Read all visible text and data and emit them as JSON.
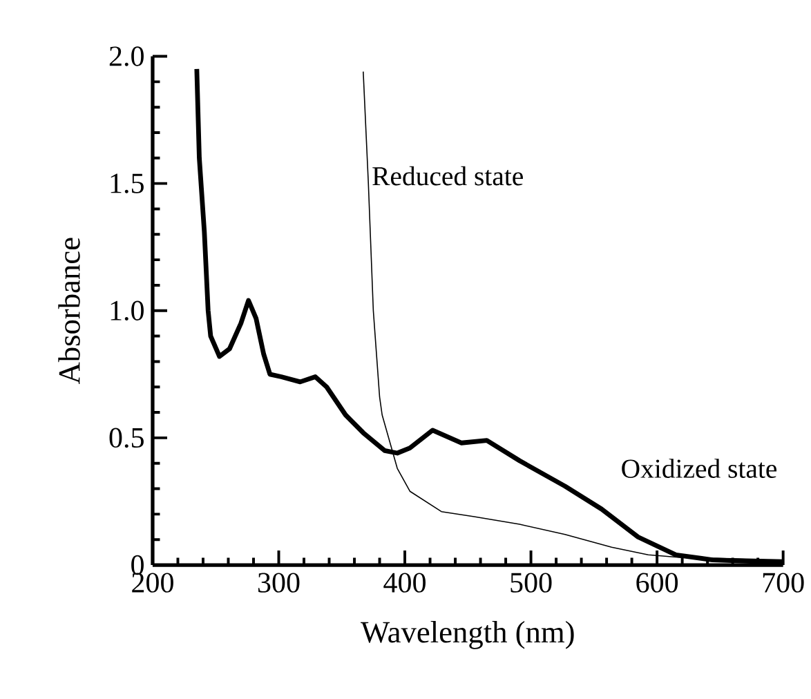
{
  "chart_data": {
    "type": "line",
    "xlabel": "Wavelength (nm)",
    "ylabel": "Absorbance",
    "xlim": [
      200,
      700
    ],
    "ylim": [
      0,
      2.0
    ],
    "xticks": [
      200,
      300,
      400,
      500,
      600,
      700
    ],
    "yticks": [
      {
        "value": 0,
        "label": "0"
      },
      {
        "value": 0.5,
        "label": "0.5"
      },
      {
        "value": 1.0,
        "label": "1.0"
      },
      {
        "value": 1.5,
        "label": "1.5"
      },
      {
        "value": 2.0,
        "label": "2.0"
      }
    ],
    "grid": false,
    "legend": false,
    "marker": "none",
    "line_style": "solid",
    "series": [
      {
        "name": "Oxidized state",
        "color": "#000000",
        "x": [
          235,
          237,
          241,
          244,
          246,
          253,
          261,
          270,
          276,
          282,
          288,
          293,
          302,
          317,
          329,
          338,
          353,
          367,
          384,
          394,
          404,
          422,
          445,
          465,
          491,
          527,
          556,
          585,
          615,
          644,
          700
        ],
        "values": [
          1.95,
          1.6,
          1.31,
          1.0,
          0.9,
          0.82,
          0.85,
          0.95,
          1.04,
          0.97,
          0.83,
          0.75,
          0.74,
          0.72,
          0.74,
          0.7,
          0.59,
          0.52,
          0.45,
          0.44,
          0.46,
          0.53,
          0.48,
          0.49,
          0.41,
          0.31,
          0.22,
          0.11,
          0.04,
          0.02,
          0.01
        ]
      },
      {
        "name": "Reduced state",
        "color": "#000000",
        "x": [
          367,
          371,
          375,
          380,
          382,
          394,
          404,
          429,
          455,
          491,
          527,
          564,
          593,
          618,
          700
        ],
        "values": [
          1.94,
          1.51,
          1.0,
          0.66,
          0.59,
          0.38,
          0.29,
          0.21,
          0.19,
          0.16,
          0.12,
          0.07,
          0.04,
          0.03,
          0.02
        ]
      }
    ]
  }
}
